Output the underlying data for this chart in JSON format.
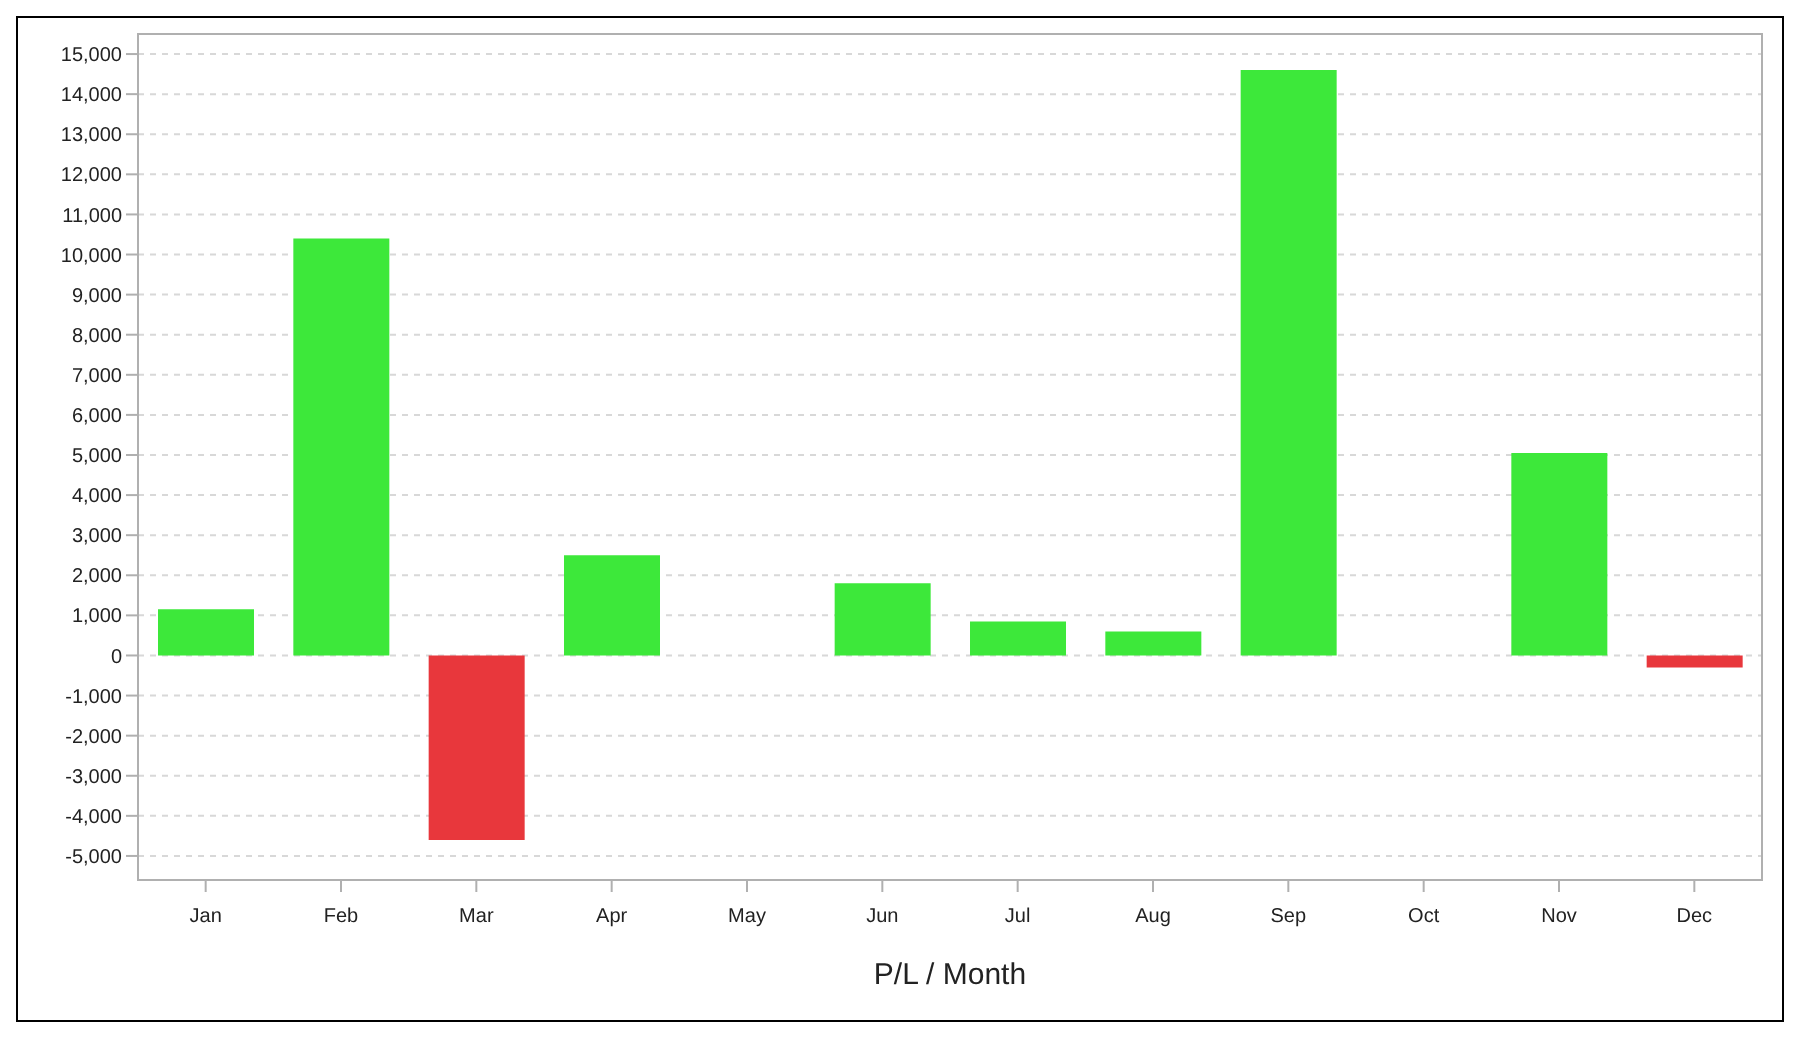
{
  "chart_data": {
    "type": "bar",
    "xlabel": "P/L / Month",
    "categories": [
      "Jan",
      "Feb",
      "Mar",
      "Apr",
      "May",
      "Jun",
      "Jul",
      "Aug",
      "Sep",
      "Oct",
      "Nov",
      "Dec"
    ],
    "values": [
      1150,
      10400,
      -4600,
      2500,
      0,
      1800,
      850,
      600,
      14600,
      0,
      5050,
      -300
    ],
    "colors": [
      "#3de83a",
      "#3de83a",
      "#e8373c",
      "#3de83a",
      "#3de83a",
      "#3de83a",
      "#3de83a",
      "#3de83a",
      "#3de83a",
      "#3de83a",
      "#3de83a",
      "#e8373c"
    ],
    "ylim": [
      -5600,
      15500
    ],
    "yticks": [
      {
        "value": -5000,
        "label": "-5,000"
      },
      {
        "value": -4000,
        "label": "-4,000"
      },
      {
        "value": -3000,
        "label": "-3,000"
      },
      {
        "value": -2000,
        "label": "-2,000"
      },
      {
        "value": -1000,
        "label": "-1,000"
      },
      0,
      {
        "value": 1000,
        "label": "1,000"
      },
      {
        "value": 2000,
        "label": "2,000"
      },
      {
        "value": 3000,
        "label": "3,000"
      },
      {
        "value": 4000,
        "label": "4,000"
      },
      {
        "value": 5000,
        "label": "5,000"
      },
      {
        "value": 6000,
        "label": "6,000"
      },
      {
        "value": 7000,
        "label": "7,000"
      },
      {
        "value": 8000,
        "label": "8,000"
      },
      {
        "value": 9000,
        "label": "9,000"
      },
      {
        "value": 10000,
        "label": "10,000"
      },
      {
        "value": 11000,
        "label": "11,000"
      },
      {
        "value": 12000,
        "label": "12,000"
      },
      {
        "value": 13000,
        "label": "13,000"
      },
      {
        "value": 14000,
        "label": "14,000"
      },
      {
        "value": 15000,
        "label": "15,000"
      }
    ],
    "grid": "y",
    "legend": false
  }
}
